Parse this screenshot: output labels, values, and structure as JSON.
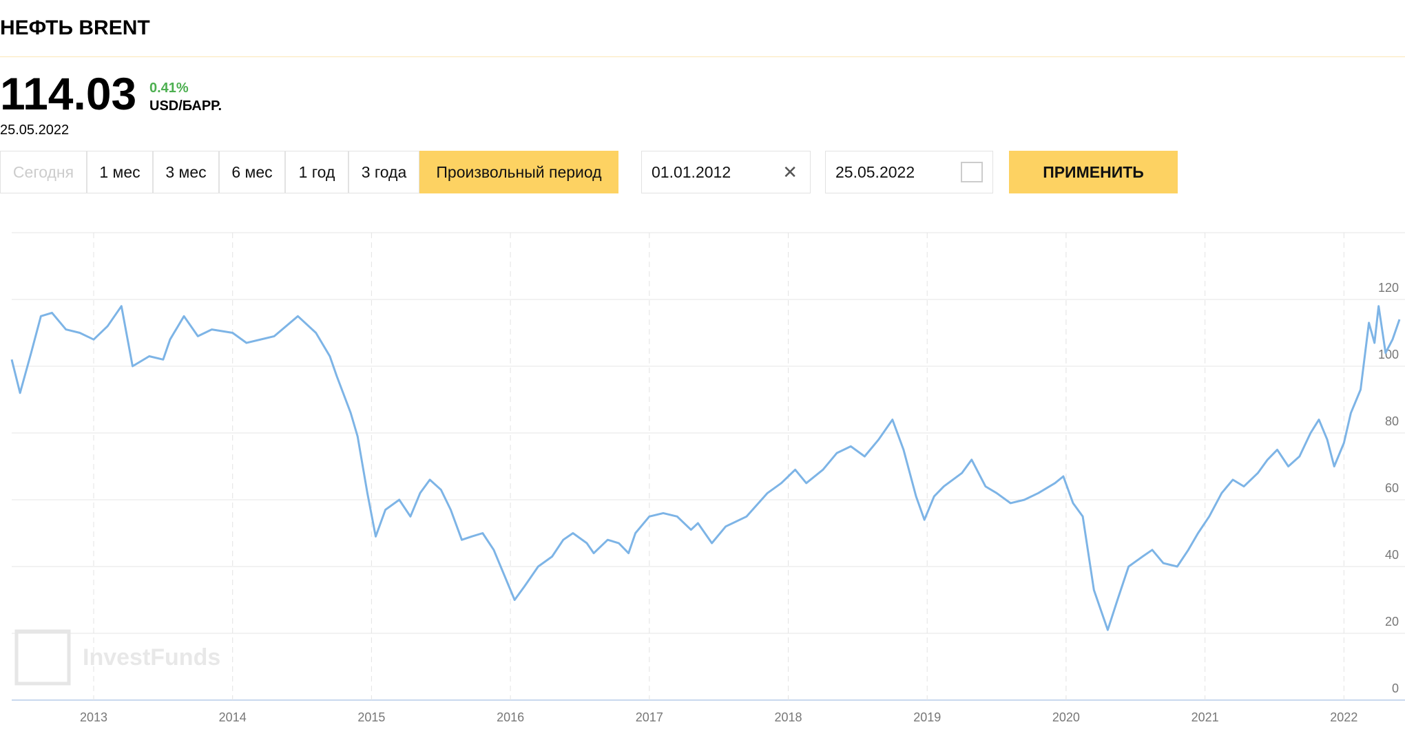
{
  "header": {
    "title": "НЕФТЬ BRENT",
    "price": "114.03",
    "change": "0.41%",
    "unit": "USD/БАРР.",
    "date": "25.05.2022"
  },
  "periods": [
    "Сегодня",
    "1 мес",
    "3 мес",
    "6 мес",
    "1 год",
    "3 года",
    "Произвольный период"
  ],
  "date_from": "01.01.2012",
  "date_to": "25.05.2022",
  "apply": "ПРИМЕНИТЬ",
  "watermark": "InvestFunds",
  "chart_data": {
    "type": "line",
    "x": [
      2012.41,
      2012.47,
      2012.55,
      2012.62,
      2012.7,
      2012.8,
      2012.9,
      2013.0,
      2013.1,
      2013.2,
      2013.28,
      2013.4,
      2013.5,
      2013.55,
      2013.65,
      2013.75,
      2013.85,
      2014.0,
      2014.1,
      2014.3,
      2014.47,
      2014.6,
      2014.7,
      2014.75,
      2014.85,
      2014.9,
      2014.97,
      2015.03,
      2015.1,
      2015.2,
      2015.28,
      2015.35,
      2015.42,
      2015.5,
      2015.57,
      2015.65,
      2015.72,
      2015.8,
      2015.88,
      2015.95,
      2016.03,
      2016.1,
      2016.2,
      2016.3,
      2016.38,
      2016.45,
      2016.55,
      2016.6,
      2016.7,
      2016.78,
      2016.85,
      2016.9,
      2017.0,
      2017.1,
      2017.2,
      2017.3,
      2017.35,
      2017.45,
      2017.55,
      2017.7,
      2017.85,
      2017.95,
      2018.05,
      2018.13,
      2018.25,
      2018.35,
      2018.45,
      2018.55,
      2018.65,
      2018.75,
      2018.83,
      2018.92,
      2018.98,
      2019.05,
      2019.12,
      2019.25,
      2019.32,
      2019.42,
      2019.5,
      2019.6,
      2019.7,
      2019.8,
      2019.92,
      2019.98,
      2020.05,
      2020.12,
      2020.2,
      2020.25,
      2020.3,
      2020.37,
      2020.45,
      2020.55,
      2020.62,
      2020.7,
      2020.8,
      2020.88,
      2020.95,
      2021.03,
      2021.12,
      2021.2,
      2021.28,
      2021.38,
      2021.45,
      2021.52,
      2021.6,
      2021.68,
      2021.76,
      2021.82,
      2021.88,
      2021.93,
      2022.0,
      2022.05,
      2022.12,
      2022.18,
      2022.22,
      2022.25,
      2022.3,
      2022.35,
      2022.4
    ],
    "series": [
      {
        "color": "#7db4e6",
        "values": [
          102,
          92,
          104,
          115,
          116,
          111,
          110,
          108,
          112,
          118,
          100,
          103,
          102,
          108,
          115,
          109,
          111,
          110,
          107,
          109,
          115,
          110,
          103,
          97,
          86,
          79,
          62,
          49,
          57,
          60,
          55,
          62,
          66,
          63,
          57,
          48,
          49,
          50,
          45,
          38,
          30,
          34,
          40,
          43,
          48,
          50,
          47,
          44,
          48,
          47,
          44,
          50,
          55,
          56,
          55,
          51,
          53,
          47,
          52,
          55,
          62,
          65,
          69,
          65,
          69,
          74,
          76,
          73,
          78,
          84,
          75,
          61,
          54,
          61,
          64,
          68,
          72,
          64,
          62,
          59,
          60,
          62,
          65,
          67,
          59,
          55,
          33,
          27,
          21,
          30,
          40,
          43,
          45,
          41,
          40,
          45,
          50,
          55,
          62,
          66,
          64,
          68,
          72,
          75,
          70,
          73,
          80,
          84,
          78,
          70,
          77,
          86,
          93,
          113,
          107,
          118,
          104,
          108,
          114.03
        ]
      }
    ],
    "xlim": [
      2012.41,
      2022.4
    ],
    "xticks": [
      2013,
      2014,
      2015,
      2016,
      2017,
      2018,
      2019,
      2020,
      2021,
      2022
    ],
    "ylim": [
      0,
      140
    ],
    "yticks": [
      0,
      20,
      40,
      60,
      80,
      100,
      120
    ],
    "grid": true
  }
}
